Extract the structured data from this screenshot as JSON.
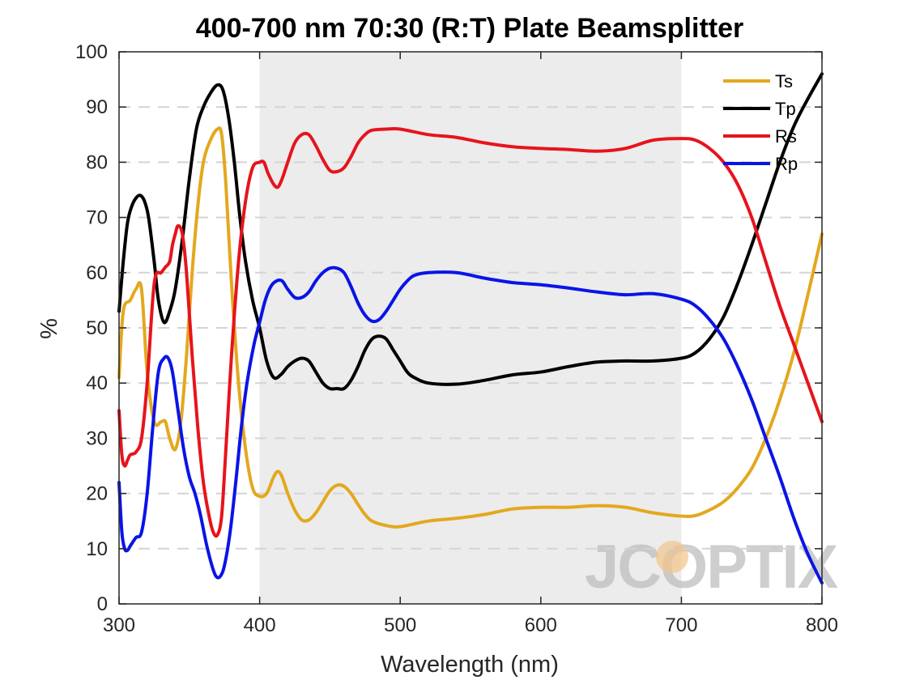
{
  "chart_data": {
    "type": "line",
    "title": "400-700 nm 70:30 (R:T) Plate Beamsplitter",
    "xlabel": "Wavelength (nm)",
    "ylabel": "%",
    "xlim": [
      300,
      800
    ],
    "ylim": [
      0,
      100
    ],
    "x_ticks": [
      300,
      400,
      500,
      600,
      700,
      800
    ],
    "y_ticks": [
      0,
      10,
      20,
      30,
      40,
      50,
      60,
      70,
      80,
      90,
      100
    ],
    "grid": "horizontal dashed",
    "legend_position": "top-right",
    "highlight_band": {
      "x_range": [
        400,
        700
      ]
    },
    "watermark": "JCOPTIX",
    "series": [
      {
        "name": "Ts",
        "color": "#e3a81e",
        "points": [
          [
            300,
            41
          ],
          [
            303,
            53
          ],
          [
            308,
            55
          ],
          [
            312,
            57
          ],
          [
            316,
            57
          ],
          [
            320,
            42
          ],
          [
            325,
            33
          ],
          [
            330,
            33
          ],
          [
            333,
            33
          ],
          [
            336,
            30
          ],
          [
            340,
            28
          ],
          [
            344,
            33
          ],
          [
            348,
            45
          ],
          [
            352,
            60
          ],
          [
            356,
            72
          ],
          [
            360,
            80
          ],
          [
            365,
            84
          ],
          [
            370,
            86
          ],
          [
            373,
            85
          ],
          [
            376,
            76
          ],
          [
            380,
            58
          ],
          [
            385,
            40
          ],
          [
            390,
            28
          ],
          [
            395,
            21
          ],
          [
            400,
            19.5
          ],
          [
            405,
            20
          ],
          [
            410,
            23
          ],
          [
            413,
            24
          ],
          [
            416,
            23
          ],
          [
            420,
            20
          ],
          [
            425,
            17
          ],
          [
            430,
            15.2
          ],
          [
            435,
            15.2
          ],
          [
            440,
            16.5
          ],
          [
            445,
            18.5
          ],
          [
            450,
            20.5
          ],
          [
            455,
            21.5
          ],
          [
            460,
            21.3
          ],
          [
            465,
            20
          ],
          [
            470,
            18
          ],
          [
            475,
            16.2
          ],
          [
            480,
            15
          ],
          [
            490,
            14.2
          ],
          [
            500,
            14
          ],
          [
            520,
            15
          ],
          [
            540,
            15.5
          ],
          [
            560,
            16.2
          ],
          [
            580,
            17.2
          ],
          [
            600,
            17.5
          ],
          [
            620,
            17.5
          ],
          [
            640,
            17.8
          ],
          [
            660,
            17.5
          ],
          [
            680,
            16.5
          ],
          [
            700,
            15.9
          ],
          [
            710,
            16
          ],
          [
            720,
            17
          ],
          [
            730,
            18.5
          ],
          [
            740,
            21
          ],
          [
            750,
            24.5
          ],
          [
            760,
            30
          ],
          [
            770,
            37
          ],
          [
            780,
            45.5
          ],
          [
            790,
            56
          ],
          [
            800,
            67
          ]
        ]
      },
      {
        "name": "Tp",
        "color": "#000000",
        "points": [
          [
            300,
            53
          ],
          [
            303,
            62
          ],
          [
            306,
            69
          ],
          [
            309,
            72
          ],
          [
            312,
            73.5
          ],
          [
            315,
            74
          ],
          [
            318,
            73
          ],
          [
            321,
            70
          ],
          [
            325,
            62
          ],
          [
            328,
            55
          ],
          [
            332,
            51
          ],
          [
            336,
            53
          ],
          [
            340,
            57
          ],
          [
            345,
            66
          ],
          [
            350,
            77
          ],
          [
            355,
            86
          ],
          [
            360,
            90
          ],
          [
            365,
            92.5
          ],
          [
            370,
            94
          ],
          [
            374,
            93
          ],
          [
            378,
            88
          ],
          [
            382,
            80
          ],
          [
            386,
            70
          ],
          [
            390,
            62
          ],
          [
            395,
            55
          ],
          [
            400,
            50
          ],
          [
            405,
            44
          ],
          [
            410,
            41
          ],
          [
            415,
            41.5
          ],
          [
            420,
            43
          ],
          [
            425,
            44
          ],
          [
            430,
            44.5
          ],
          [
            435,
            44
          ],
          [
            440,
            42
          ],
          [
            445,
            40
          ],
          [
            450,
            39
          ],
          [
            455,
            39
          ],
          [
            460,
            39
          ],
          [
            465,
            40.5
          ],
          [
            470,
            43
          ],
          [
            475,
            46
          ],
          [
            480,
            48
          ],
          [
            485,
            48.5
          ],
          [
            490,
            48
          ],
          [
            495,
            46
          ],
          [
            500,
            44
          ],
          [
            505,
            42
          ],
          [
            510,
            41
          ],
          [
            520,
            40
          ],
          [
            540,
            39.8
          ],
          [
            560,
            40.5
          ],
          [
            580,
            41.5
          ],
          [
            600,
            42
          ],
          [
            620,
            43
          ],
          [
            640,
            43.8
          ],
          [
            660,
            44
          ],
          [
            680,
            44
          ],
          [
            700,
            44.5
          ],
          [
            710,
            45.5
          ],
          [
            720,
            48
          ],
          [
            730,
            52
          ],
          [
            740,
            58
          ],
          [
            750,
            65
          ],
          [
            760,
            72.5
          ],
          [
            770,
            80
          ],
          [
            780,
            86.5
          ],
          [
            790,
            91.5
          ],
          [
            800,
            96
          ]
        ]
      },
      {
        "name": "Rs",
        "color": "#e6141c",
        "points": [
          [
            300,
            35
          ],
          [
            302,
            27
          ],
          [
            304,
            25
          ],
          [
            306,
            26
          ],
          [
            308,
            27
          ],
          [
            312,
            27.5
          ],
          [
            316,
            30
          ],
          [
            320,
            40
          ],
          [
            325,
            58
          ],
          [
            330,
            60
          ],
          [
            333,
            61
          ],
          [
            336,
            62
          ],
          [
            338,
            65
          ],
          [
            340,
            67
          ],
          [
            342,
            68.5
          ],
          [
            345,
            67
          ],
          [
            348,
            60
          ],
          [
            352,
            45
          ],
          [
            356,
            32
          ],
          [
            360,
            22
          ],
          [
            364,
            16
          ],
          [
            367,
            13
          ],
          [
            370,
            12.5
          ],
          [
            373,
            16
          ],
          [
            376,
            28
          ],
          [
            380,
            45
          ],
          [
            385,
            62
          ],
          [
            390,
            73
          ],
          [
            395,
            79
          ],
          [
            400,
            80
          ],
          [
            403,
            80
          ],
          [
            406,
            78
          ],
          [
            410,
            76
          ],
          [
            413,
            75.5
          ],
          [
            416,
            77
          ],
          [
            420,
            80
          ],
          [
            425,
            83.5
          ],
          [
            430,
            85
          ],
          [
            435,
            85
          ],
          [
            440,
            83
          ],
          [
            445,
            80.5
          ],
          [
            450,
            78.5
          ],
          [
            455,
            78.3
          ],
          [
            460,
            79
          ],
          [
            465,
            81
          ],
          [
            470,
            83.5
          ],
          [
            475,
            85
          ],
          [
            480,
            85.8
          ],
          [
            490,
            86
          ],
          [
            500,
            86
          ],
          [
            520,
            85
          ],
          [
            540,
            84.5
          ],
          [
            560,
            83.5
          ],
          [
            580,
            82.8
          ],
          [
            600,
            82.5
          ],
          [
            620,
            82.3
          ],
          [
            640,
            82
          ],
          [
            660,
            82.5
          ],
          [
            680,
            84
          ],
          [
            700,
            84.3
          ],
          [
            710,
            84
          ],
          [
            720,
            82.5
          ],
          [
            730,
            80
          ],
          [
            740,
            76
          ],
          [
            750,
            70
          ],
          [
            760,
            62
          ],
          [
            770,
            54
          ],
          [
            780,
            47
          ],
          [
            790,
            40
          ],
          [
            800,
            33
          ]
        ]
      },
      {
        "name": "Rp",
        "color": "#0a14e6",
        "points": [
          [
            300,
            22
          ],
          [
            302,
            13
          ],
          [
            304,
            10
          ],
          [
            306,
            9.7
          ],
          [
            308,
            10.5
          ],
          [
            312,
            12
          ],
          [
            316,
            13
          ],
          [
            320,
            20
          ],
          [
            324,
            32
          ],
          [
            328,
            42
          ],
          [
            332,
            44.5
          ],
          [
            335,
            44.5
          ],
          [
            338,
            42
          ],
          [
            342,
            35
          ],
          [
            346,
            28
          ],
          [
            350,
            23
          ],
          [
            354,
            20
          ],
          [
            358,
            16
          ],
          [
            362,
            11
          ],
          [
            366,
            7
          ],
          [
            369,
            5
          ],
          [
            372,
            5
          ],
          [
            375,
            7
          ],
          [
            379,
            13
          ],
          [
            383,
            22
          ],
          [
            387,
            32
          ],
          [
            391,
            40
          ],
          [
            396,
            47
          ],
          [
            400,
            51
          ],
          [
            404,
            55
          ],
          [
            408,
            57.5
          ],
          [
            412,
            58.5
          ],
          [
            416,
            58.5
          ],
          [
            420,
            57
          ],
          [
            425,
            55.5
          ],
          [
            430,
            55.5
          ],
          [
            435,
            56.5
          ],
          [
            440,
            58.5
          ],
          [
            445,
            60
          ],
          [
            450,
            60.8
          ],
          [
            455,
            60.8
          ],
          [
            460,
            60
          ],
          [
            465,
            57.5
          ],
          [
            470,
            54.5
          ],
          [
            475,
            52.3
          ],
          [
            480,
            51.2
          ],
          [
            485,
            51.5
          ],
          [
            490,
            53
          ],
          [
            495,
            55
          ],
          [
            500,
            57
          ],
          [
            505,
            58.5
          ],
          [
            510,
            59.5
          ],
          [
            520,
            60
          ],
          [
            540,
            60
          ],
          [
            560,
            59
          ],
          [
            580,
            58.2
          ],
          [
            600,
            57.8
          ],
          [
            620,
            57.2
          ],
          [
            640,
            56.5
          ],
          [
            660,
            56
          ],
          [
            680,
            56.2
          ],
          [
            700,
            55.2
          ],
          [
            710,
            54
          ],
          [
            720,
            51.5
          ],
          [
            730,
            48
          ],
          [
            740,
            43
          ],
          [
            750,
            37
          ],
          [
            760,
            30
          ],
          [
            770,
            23
          ],
          [
            780,
            15.5
          ],
          [
            790,
            9
          ],
          [
            800,
            3.8
          ]
        ]
      }
    ]
  }
}
